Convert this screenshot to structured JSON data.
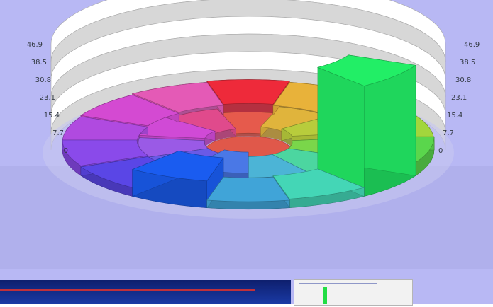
{
  "chart_data": {
    "type": "bar",
    "variant": "3d-radial-sunburst",
    "title": "",
    "xlabel": "",
    "ylabel": "",
    "ylim": [
      0,
      46.9
    ],
    "grid": true,
    "legend": "none",
    "y_ticks_left": [
      "0",
      "7.7",
      "15.4",
      "23.1",
      "30.8",
      "38.5",
      "46.9"
    ],
    "y_ticks_left_display": [
      "0",
      "7.7",
      "15.4",
      "23.1",
      "30.8",
      "38.5",
      "46.9"
    ],
    "y_ticks_right": [
      "0",
      "7.7",
      "15.4",
      "23.1",
      "30.8",
      "38.5",
      "46.9"
    ],
    "colors": {
      "background": "#b8b8f4",
      "floor": "#a9a9e6",
      "wall_band": "#d7d7d7",
      "wall_gap": "#ffffff",
      "center_disk": "#e0584a"
    },
    "inner_ring": [
      {
        "color": "#e65a4c",
        "value": 0
      },
      {
        "color": "#e0b43c",
        "value": 3.0
      },
      {
        "color": "#b8cc3c",
        "value": 4.0
      },
      {
        "color": "#7ad64a",
        "value": 2.0
      },
      {
        "color": "#4cd6a0",
        "value": 2.0
      },
      {
        "color": "#4cb4d6",
        "value": 2.0
      },
      {
        "color": "#4a78e6",
        "value": 4.0
      },
      {
        "color": "#6a5ae6",
        "value": 2.0
      },
      {
        "color": "#9a5ae6",
        "value": 2.0
      },
      {
        "color": "#d04ad6",
        "value": 3.0
      },
      {
        "color": "#e04a8c",
        "value": 2.0
      }
    ],
    "outer_ring": [
      {
        "color": "#ee2a3a",
        "value": 3.0
      },
      {
        "color": "#e8b23a",
        "value": 2.5
      },
      {
        "color": "#d0cc3a",
        "value": 3.5
      },
      {
        "color": "#a2d63c",
        "value": 2.0
      },
      {
        "color": "#5ad64c",
        "value": 4.0
      },
      {
        "color": "#22ee66",
        "value": 46.9
      },
      {
        "color": "#44d6b6",
        "value": 2.0
      },
      {
        "color": "#40a4d8",
        "value": 1.5
      },
      {
        "color": "#1a5cf0",
        "value": 10.0
      },
      {
        "color": "#5a46e6",
        "value": 2.0
      },
      {
        "color": "#8a4aea",
        "value": 2.5
      },
      {
        "color": "#b04ae0",
        "value": 1.5
      },
      {
        "color": "#d44ad2",
        "value": 2.0
      },
      {
        "color": "#e45ab6",
        "value": 2.5
      }
    ]
  }
}
